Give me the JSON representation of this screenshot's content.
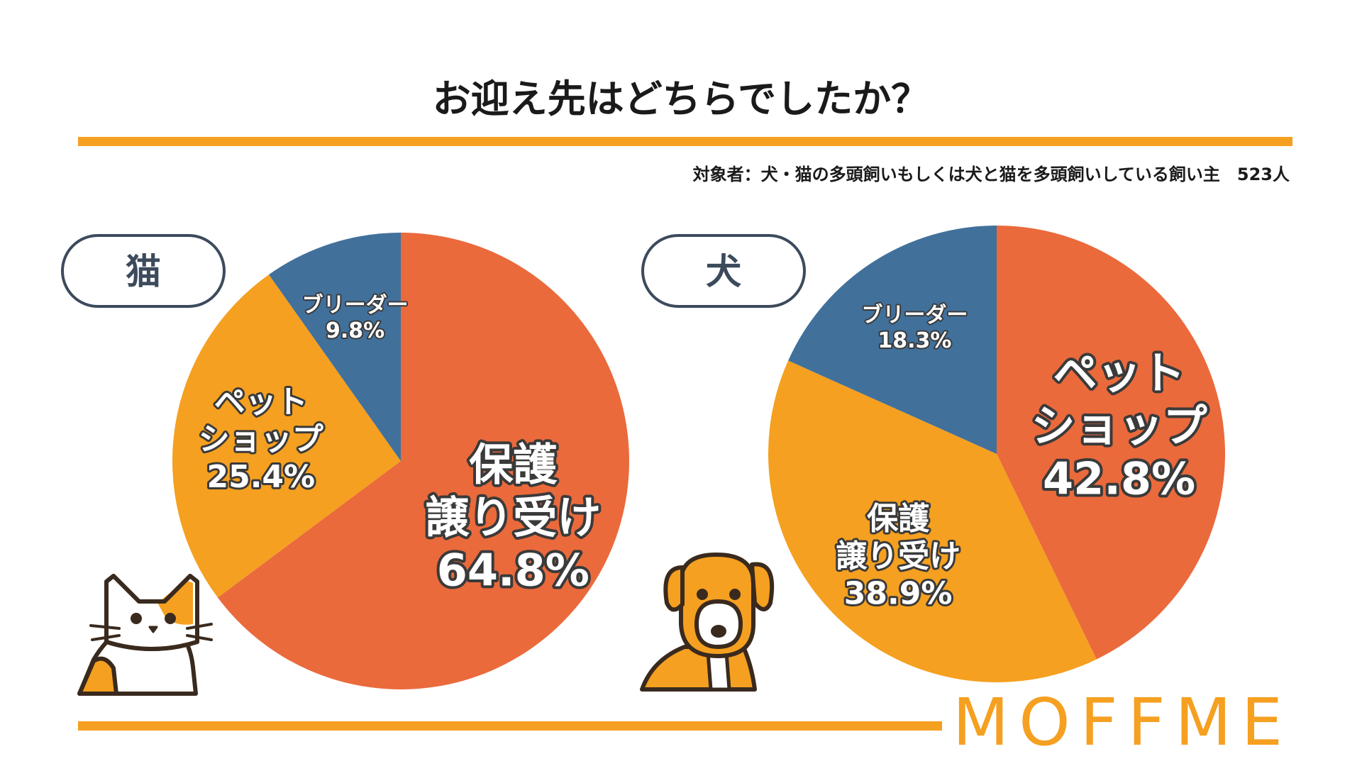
{
  "title": "お迎え先はどちらでしたか？",
  "subtitle": "対象者：犬・猫の多頭飼いもしくは犬と猫を多頭飼いしている飼い主　523人",
  "brand": "MOFFME",
  "colors": {
    "accent": "#f5a020",
    "protect": "#ea6a3c",
    "shop": "#f5a020",
    "breeder": "#41709b",
    "badge_border": "#3c4a5c"
  },
  "chart_data": [
    {
      "type": "pie",
      "id": "cat",
      "title": "猫",
      "start": "12 o'clock, clockwise",
      "slices": [
        {
          "name": "保護譲り受け",
          "lines": [
            "保護",
            "譲り受け"
          ],
          "pct_label": "64.8%",
          "value": 64.8,
          "color": "#ea6a3c",
          "size": "large"
        },
        {
          "name": "ペットショップ",
          "lines": [
            "ペット",
            "ショップ"
          ],
          "pct_label": "25.4%",
          "value": 25.4,
          "color": "#f5a020",
          "size": "medium"
        },
        {
          "name": "ブリーダー",
          "lines": [
            "ブリーダー"
          ],
          "pct_label": "9.8%",
          "value": 9.8,
          "color": "#41709b",
          "size": "small"
        }
      ]
    },
    {
      "type": "pie",
      "id": "dog",
      "title": "犬",
      "start": "12 o'clock, clockwise",
      "slices": [
        {
          "name": "ペットショップ",
          "lines": [
            "ペット",
            "ショップ"
          ],
          "pct_label": "42.8%",
          "value": 42.8,
          "color": "#ea6a3c",
          "size": "large"
        },
        {
          "name": "保護譲り受け",
          "lines": [
            "保護",
            "譲り受け"
          ],
          "pct_label": "38.9%",
          "value": 38.9,
          "color": "#f5a020",
          "size": "medium"
        },
        {
          "name": "ブリーダー",
          "lines": [
            "ブリーダー"
          ],
          "pct_label": "18.3%",
          "value": 18.3,
          "color": "#41709b",
          "size": "small"
        }
      ]
    }
  ]
}
